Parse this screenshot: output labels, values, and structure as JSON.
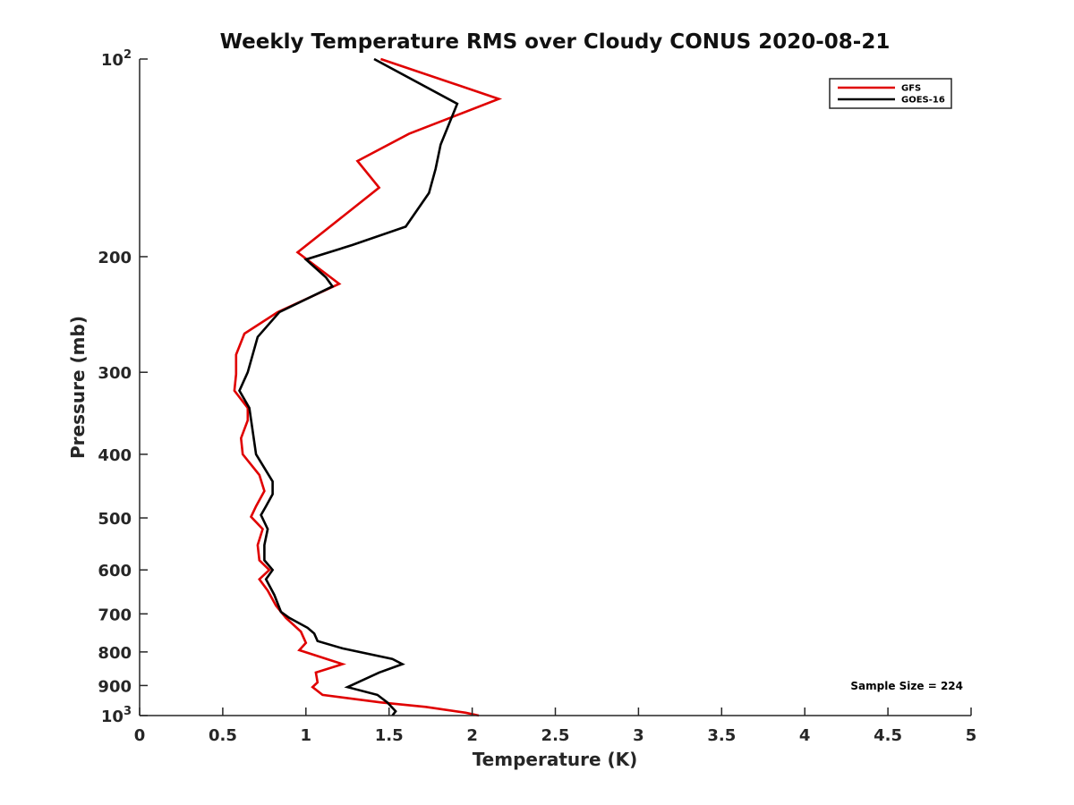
{
  "chart_data": {
    "type": "line",
    "title": "Weekly Temperature RMS over Cloudy CONUS 2020-08-21",
    "xlabel": "Temperature (K)",
    "ylabel": "Pressure (mb)",
    "xlim": [
      0,
      5
    ],
    "ylim": [
      100,
      1000
    ],
    "y_scale": "log",
    "y_reversed": true,
    "grid": false,
    "legend_position": "top-right",
    "x_ticks": [
      {
        "value": 0,
        "label": "0"
      },
      {
        "value": 0.5,
        "label": "0.5"
      },
      {
        "value": 1,
        "label": "1"
      },
      {
        "value": 1.5,
        "label": "1.5"
      },
      {
        "value": 2,
        "label": "2"
      },
      {
        "value": 2.5,
        "label": "2.5"
      },
      {
        "value": 3,
        "label": "3"
      },
      {
        "value": 3.5,
        "label": "3.5"
      },
      {
        "value": 4,
        "label": "4"
      },
      {
        "value": 4.5,
        "label": "4.5"
      },
      {
        "value": 5,
        "label": "5"
      }
    ],
    "y_ticks": [
      {
        "value": 100,
        "label": "10",
        "sup": "2"
      },
      {
        "value": 200,
        "label": "200"
      },
      {
        "value": 300,
        "label": "300"
      },
      {
        "value": 400,
        "label": "400"
      },
      {
        "value": 500,
        "label": "500"
      },
      {
        "value": 600,
        "label": "600"
      },
      {
        "value": 700,
        "label": "700"
      },
      {
        "value": 800,
        "label": "800"
      },
      {
        "value": 900,
        "label": "900"
      },
      {
        "value": 1000,
        "label": "10",
        "sup": "3"
      }
    ],
    "series": [
      {
        "name": "GFS",
        "color": "#e00000",
        "points": [
          [
            1.45,
            100
          ],
          [
            2.16,
            115
          ],
          [
            1.62,
            130
          ],
          [
            1.31,
            143
          ],
          [
            1.44,
            157
          ],
          [
            0.95,
            197
          ],
          [
            1.2,
            220
          ],
          [
            0.83,
            243
          ],
          [
            0.63,
            262
          ],
          [
            0.58,
            282
          ],
          [
            0.58,
            302
          ],
          [
            0.57,
            320
          ],
          [
            0.65,
            340
          ],
          [
            0.65,
            355
          ],
          [
            0.61,
            378
          ],
          [
            0.62,
            400
          ],
          [
            0.72,
            430
          ],
          [
            0.75,
            455
          ],
          [
            0.7,
            480
          ],
          [
            0.67,
            498
          ],
          [
            0.74,
            520
          ],
          [
            0.71,
            550
          ],
          [
            0.72,
            580
          ],
          [
            0.78,
            600
          ],
          [
            0.72,
            620
          ],
          [
            0.77,
            645
          ],
          [
            0.82,
            680
          ],
          [
            0.88,
            710
          ],
          [
            0.97,
            745
          ],
          [
            1.0,
            775
          ],
          [
            0.96,
            795
          ],
          [
            1.22,
            835
          ],
          [
            1.06,
            860
          ],
          [
            1.07,
            890
          ],
          [
            1.04,
            905
          ],
          [
            1.1,
            930
          ],
          [
            1.45,
            955
          ],
          [
            1.72,
            970
          ],
          [
            1.96,
            990
          ],
          [
            2.04,
            1000
          ]
        ]
      },
      {
        "name": "GOES-16",
        "color": "#000000",
        "points": [
          [
            1.41,
            100
          ],
          [
            1.91,
            117
          ],
          [
            1.81,
            135
          ],
          [
            1.78,
            147
          ],
          [
            1.74,
            160
          ],
          [
            1.6,
            180
          ],
          [
            1.28,
            192
          ],
          [
            1.0,
            202
          ],
          [
            1.12,
            215
          ],
          [
            1.16,
            222
          ],
          [
            0.84,
            243
          ],
          [
            0.71,
            265
          ],
          [
            0.65,
            300
          ],
          [
            0.6,
            320
          ],
          [
            0.66,
            340
          ],
          [
            0.7,
            400
          ],
          [
            0.8,
            440
          ],
          [
            0.8,
            460
          ],
          [
            0.76,
            480
          ],
          [
            0.73,
            495
          ],
          [
            0.77,
            520
          ],
          [
            0.75,
            550
          ],
          [
            0.75,
            580
          ],
          [
            0.8,
            600
          ],
          [
            0.76,
            620
          ],
          [
            0.81,
            655
          ],
          [
            0.85,
            695
          ],
          [
            0.9,
            710
          ],
          [
            1.01,
            735
          ],
          [
            1.05,
            750
          ],
          [
            1.07,
            770
          ],
          [
            1.22,
            790
          ],
          [
            1.52,
            820
          ],
          [
            1.58,
            835
          ],
          [
            1.44,
            860
          ],
          [
            1.25,
            905
          ],
          [
            1.43,
            930
          ],
          [
            1.49,
            955
          ],
          [
            1.54,
            985
          ],
          [
            1.52,
            1000
          ]
        ]
      }
    ],
    "annotations": [
      {
        "text": "Sample Size = 224",
        "position": "bottom-right"
      }
    ]
  }
}
